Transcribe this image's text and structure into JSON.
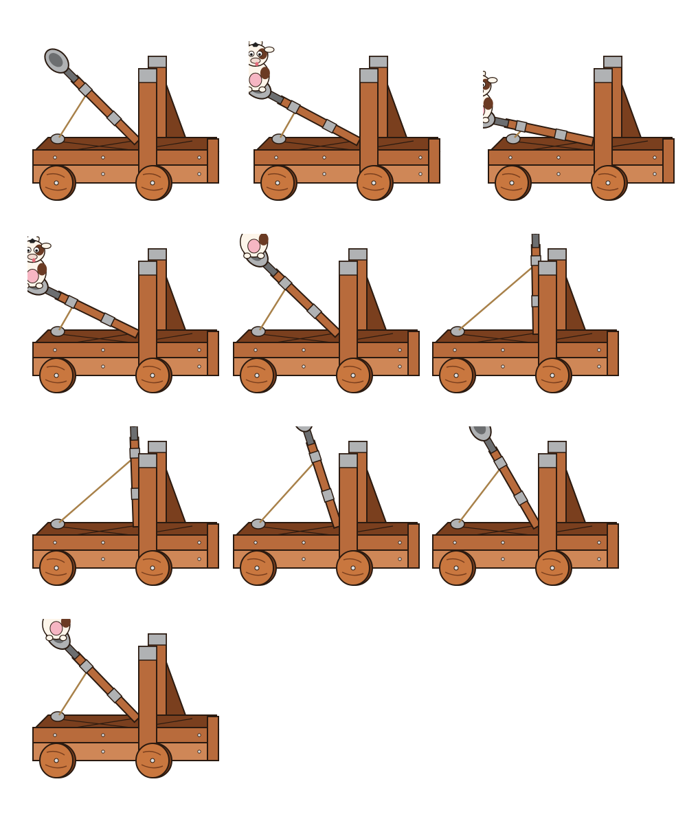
{
  "sprite_sheet": {
    "subject": "catapult",
    "frame_count": 10,
    "colors": {
      "wood": "#b86b3c",
      "wood_light": "#cf8757",
      "wood_dark": "#7a3f1e",
      "wheel": "#c9773f",
      "steel": "#b0b2b4",
      "steel_dark": "#6c6e70",
      "rope": "#a8814a",
      "outline": "#2a1a10",
      "cow_body": "#fdf5ea",
      "cow_patch": "#6b3b24",
      "cow_udder": "#f6b6c3"
    },
    "frames": [
      {
        "arm_angle_deg": -45,
        "payload": "none"
      },
      {
        "arm_angle_deg": -28,
        "payload": "cow"
      },
      {
        "arm_angle_deg": -12,
        "payload": "cow"
      },
      {
        "arm_angle_deg": -26,
        "payload": "cow"
      },
      {
        "arm_angle_deg": -44,
        "payload": "cow"
      },
      {
        "arm_angle_deg": -89,
        "payload": "none"
      },
      {
        "arm_angle_deg": -88,
        "payload": "none"
      },
      {
        "arm_angle_deg": -72,
        "payload": "none"
      },
      {
        "arm_angle_deg": -60,
        "payload": "none"
      },
      {
        "arm_angle_deg": -46,
        "payload": "cow"
      }
    ]
  }
}
